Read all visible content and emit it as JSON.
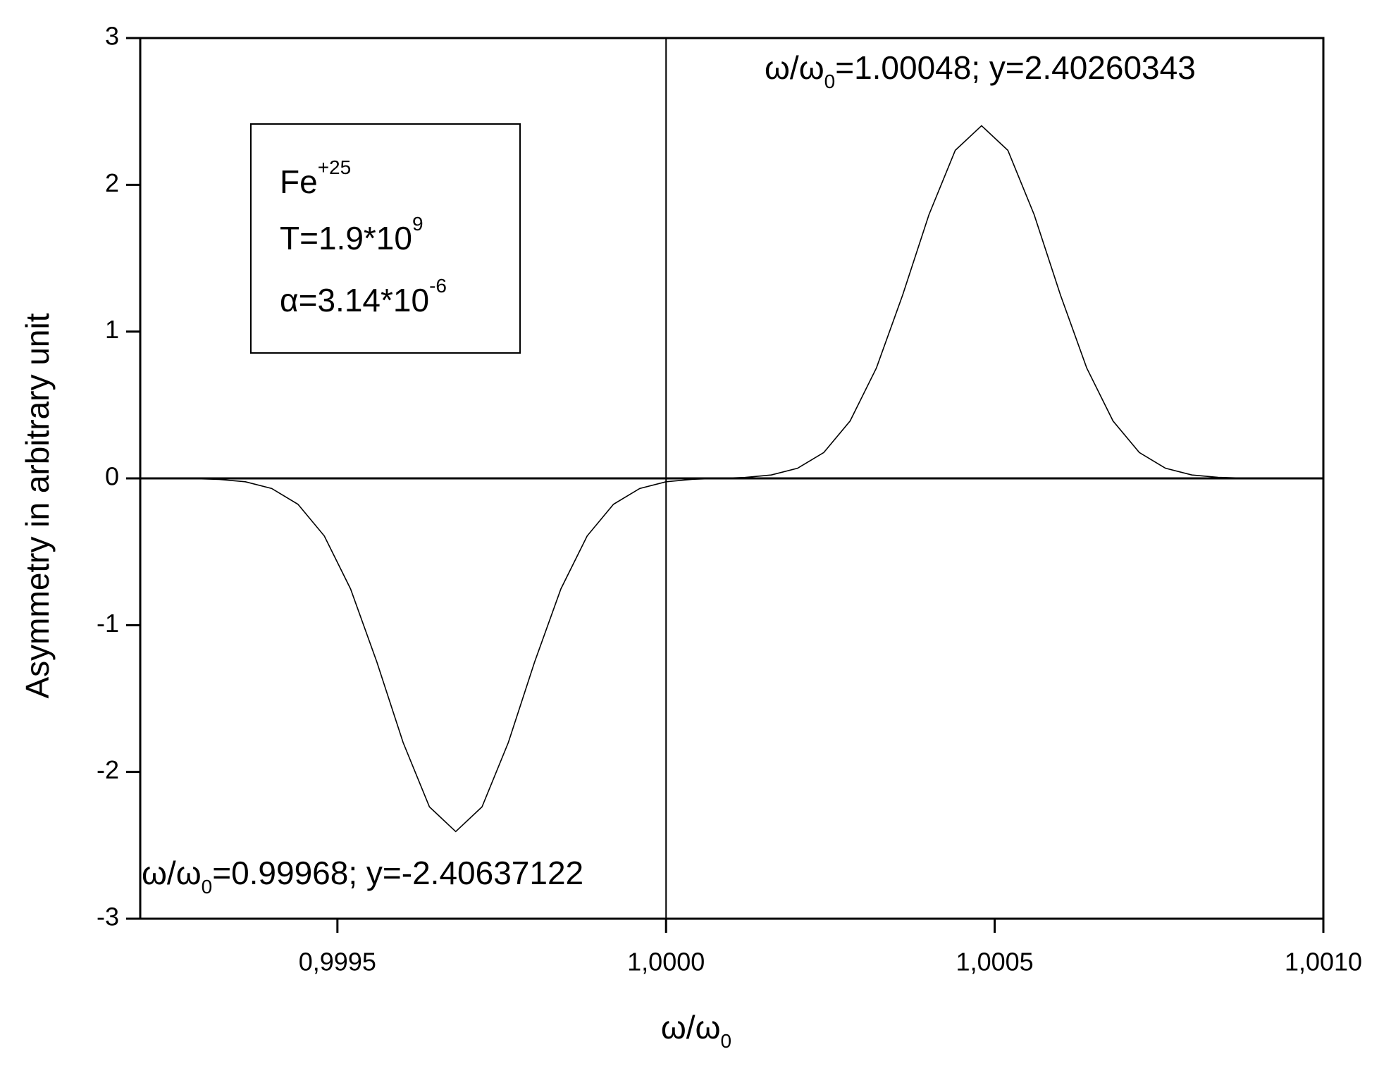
{
  "chart_data": {
    "type": "line",
    "x_label": {
      "main": "ω/ω",
      "sub": "0"
    },
    "y_label": "Asymmetry in arbitrary unit",
    "x": [
      0.99928,
      0.99932,
      0.99936,
      0.9994,
      0.99944,
      0.99948,
      0.99952,
      0.99956,
      0.9996,
      0.99964,
      0.99968,
      0.99972,
      0.99976,
      0.9998,
      0.99984,
      0.99988,
      0.99992,
      0.99996,
      1.0,
      1.00004,
      1.00008,
      1.00012,
      1.00016,
      1.0002,
      1.00024,
      1.00028,
      1.00032,
      1.00036,
      1.0004,
      1.00044,
      1.00048,
      1.00052,
      1.00056,
      1.0006,
      1.00064,
      1.00068,
      1.00072,
      1.00076,
      1.0008,
      1.00084,
      1.00088
    ],
    "series": [
      {
        "color": "#000000",
        "values": [
          -0.0017,
          -0.0067,
          -0.0231,
          -0.0688,
          -0.1766,
          -0.392,
          -0.753,
          -1.251,
          -1.8,
          -2.238,
          -2.40637122,
          -2.238,
          -1.8,
          -1.251,
          -0.753,
          -0.392,
          -0.1766,
          -0.0688,
          -0.0231,
          -0.0063,
          0,
          0.0063,
          0.0231,
          0.0688,
          0.1764,
          0.391,
          0.752,
          1.25,
          1.797,
          2.235,
          2.40260343,
          2.235,
          1.797,
          1.25,
          0.752,
          0.391,
          0.1764,
          0.0688,
          0.0231,
          0.0067,
          0.0017
        ]
      }
    ],
    "xlim": [
      0.9992,
      1.001
    ],
    "ylim": [
      -3,
      3
    ],
    "xticks": [
      {
        "value": 0.9995,
        "label": "0,9995"
      },
      {
        "value": 1.0,
        "label": "1,0000"
      },
      {
        "value": 1.0005,
        "label": "1,0005"
      },
      {
        "value": 1.001,
        "label": "1,0010"
      }
    ],
    "yticks": [
      3,
      2,
      1,
      0,
      -1,
      -2,
      -3
    ],
    "hline": 0,
    "vline": 1.0,
    "annotations": [
      {
        "main": "ω/ω",
        "sub": "0",
        "rest": "=1.00048; y=2.40260343"
      },
      {
        "main": "ω/ω",
        "sub": "0",
        "rest": "=0.99968; y=-2.40637122"
      }
    ],
    "info_box": [
      {
        "main": "Fe",
        "sup": "+25"
      },
      {
        "main": "T=1.9*10",
        "sup": "9"
      },
      {
        "main": "α=3.14*10",
        "sup": "-6"
      }
    ]
  }
}
